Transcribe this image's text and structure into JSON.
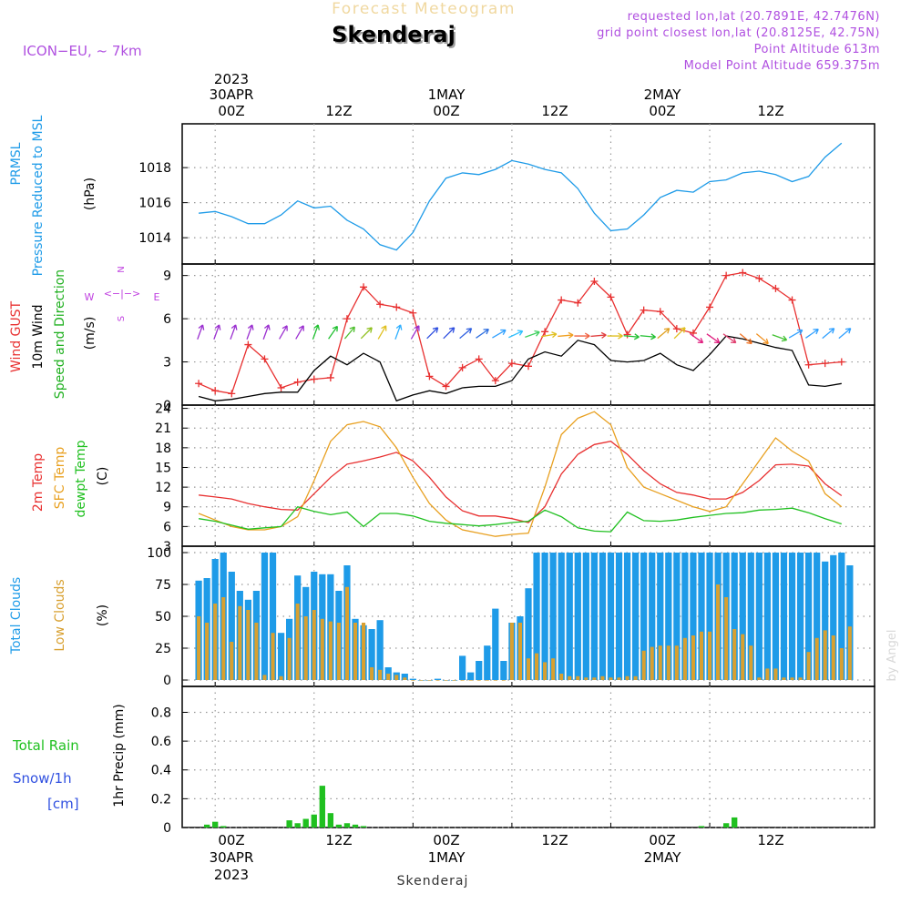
{
  "header": {
    "app_title": "Forecast Meteogram",
    "location": "Skenderaj",
    "model": "ICON−EU,  ~ 7km",
    "requested": "requested lon,lat (20.7891E, 42.7476N)",
    "gridpoint": "grid point closest lon,lat (20.8125E, 42.75N)",
    "point_alt": "Point Altitude 613m",
    "model_alt": "Model Point Altitude 659.375m",
    "footer_location": "Skenderaj",
    "watermark": "by Angel"
  },
  "time_axis": {
    "top": [
      {
        "l1": "2023",
        "l2": "30APR",
        "l3": "00Z"
      },
      {
        "l1": "",
        "l2": "",
        "l3": "12Z"
      },
      {
        "l1": "",
        "l2": "1MAY",
        "l3": "00Z"
      },
      {
        "l1": "",
        "l2": "",
        "l3": "12Z"
      },
      {
        "l1": "",
        "l2": "2MAY",
        "l3": "00Z"
      },
      {
        "l1": "",
        "l2": "",
        "l3": "12Z"
      }
    ],
    "bottom": [
      {
        "l1": "00Z",
        "l2": "30APR",
        "l3": "2023"
      },
      {
        "l1": "12Z",
        "l2": "",
        "l3": ""
      },
      {
        "l1": "00Z",
        "l2": "1MAY",
        "l3": ""
      },
      {
        "l1": "12Z",
        "l2": "",
        "l3": ""
      },
      {
        "l1": "00Z",
        "l2": "2MAY",
        "l3": ""
      },
      {
        "l1": "12Z",
        "l2": "",
        "l3": ""
      }
    ]
  },
  "chart_data": [
    {
      "type": "line",
      "id": "pressure",
      "ylabel_lines": [
        "PRMSL",
        "Pressure Reduced to MSL"
      ],
      "unit": "(hPa)",
      "ylim": [
        1012.5,
        1020.5
      ],
      "yticks": [
        1014,
        1016,
        1018
      ],
      "x_hours": [
        -2,
        0,
        2,
        4,
        6,
        8,
        10,
        12,
        14,
        16,
        18,
        20,
        22,
        24,
        26,
        28,
        30,
        32,
        34,
        36,
        38,
        40,
        42,
        44,
        46,
        48,
        50,
        52,
        54,
        56,
        58,
        60,
        62,
        64,
        66,
        68,
        70,
        72,
        74,
        76
      ],
      "series": [
        {
          "color": "#1e9be8",
          "values": [
            1015.4,
            1015.5,
            1015.2,
            1014.8,
            1014.8,
            1015.3,
            1016.1,
            1015.7,
            1015.8,
            1015.0,
            1014.5,
            1013.6,
            1013.3,
            1014.3,
            1016.1,
            1017.4,
            1017.7,
            1017.6,
            1017.9,
            1018.4,
            1018.2,
            1017.9,
            1017.7,
            1016.8,
            1015.4,
            1014.4,
            1014.5,
            1015.3,
            1016.3,
            1016.7,
            1016.6,
            1017.2,
            1017.3,
            1017.7,
            1017.8,
            1017.6,
            1017.2,
            1017.5,
            1018.6,
            1019.4
          ]
        }
      ]
    },
    {
      "type": "line",
      "id": "wind",
      "ylabel_lines": [
        "Wind GUST",
        "10m Wind",
        "Speed and Direction"
      ],
      "ylabel_colors": [
        "#e83030",
        "#000000",
        "#20b020"
      ],
      "unit": "(m/s)",
      "compass": {
        "n": "N",
        "w": "W",
        "e": "E",
        "s": "S"
      },
      "ylim": [
        0,
        9.8
      ],
      "yticks": [
        0,
        3,
        6,
        9
      ],
      "x_hours": [
        -2,
        0,
        2,
        4,
        6,
        8,
        10,
        12,
        14,
        16,
        18,
        20,
        22,
        24,
        26,
        28,
        30,
        32,
        34,
        36,
        38,
        40,
        42,
        44,
        46,
        48,
        50,
        52,
        54,
        56,
        58,
        60,
        62,
        64,
        66,
        68,
        70,
        72,
        74,
        76
      ],
      "series": [
        {
          "name": "Wind GUST",
          "color": "#e83030",
          "values": [
            1.5,
            1.0,
            0.8,
            4.2,
            3.2,
            1.2,
            1.6,
            1.8,
            1.9,
            6.0,
            8.2,
            7.0,
            6.8,
            6.4,
            2.0,
            1.3,
            2.6,
            3.2,
            1.7,
            2.9,
            2.7,
            5.1,
            7.3,
            7.1,
            8.6,
            7.5,
            4.9,
            6.6,
            6.5,
            5.3,
            5.0,
            6.8,
            9.0,
            9.2,
            8.8,
            8.1,
            7.3,
            2.8,
            2.9,
            3.0
          ]
        },
        {
          "name": "10m Wind",
          "color": "#000000",
          "values": [
            0.6,
            0.3,
            0.4,
            0.6,
            0.8,
            0.9,
            0.9,
            2.4,
            3.4,
            2.8,
            3.6,
            3.0,
            0.3,
            0.7,
            1.0,
            0.8,
            1.2,
            1.3,
            1.3,
            1.7,
            3.2,
            3.7,
            3.4,
            4.5,
            4.2,
            3.1,
            3.0,
            3.1,
            3.6,
            2.8,
            2.4,
            3.5,
            4.8,
            4.6,
            4.3,
            4.0,
            3.8,
            1.4,
            1.3,
            1.5
          ]
        }
      ],
      "barbs": [
        {
          "x": -2,
          "c": "#9b30d0",
          "a": 200
        },
        {
          "x": 0,
          "c": "#9b30d0",
          "a": 200
        },
        {
          "x": 2,
          "c": "#9b30d0",
          "a": 200
        },
        {
          "x": 4,
          "c": "#9b30d0",
          "a": 200
        },
        {
          "x": 6,
          "c": "#9b30d0",
          "a": 200
        },
        {
          "x": 8,
          "c": "#9b30d0",
          "a": 210
        },
        {
          "x": 10,
          "c": "#9b30d0",
          "a": 210
        },
        {
          "x": 12,
          "c": "#20c030",
          "a": 200
        },
        {
          "x": 14,
          "c": "#20c030",
          "a": 215
        },
        {
          "x": 16,
          "c": "#50c030",
          "a": 220
        },
        {
          "x": 18,
          "c": "#90c020",
          "a": 225
        },
        {
          "x": 20,
          "c": "#e0c020",
          "a": 210
        },
        {
          "x": 22,
          "c": "#30b0ff",
          "a": 200
        },
        {
          "x": 24,
          "c": "#9b30d0",
          "a": 210
        },
        {
          "x": 26,
          "c": "#3050e0",
          "a": 225
        },
        {
          "x": 28,
          "c": "#3050e0",
          "a": 225
        },
        {
          "x": 30,
          "c": "#3060e0",
          "a": 230
        },
        {
          "x": 32,
          "c": "#3070e0",
          "a": 235
        },
        {
          "x": 34,
          "c": "#30a0ff",
          "a": 240
        },
        {
          "x": 36,
          "c": "#30c0ff",
          "a": 245
        },
        {
          "x": 38,
          "c": "#40d060",
          "a": 250
        },
        {
          "x": 40,
          "c": "#e0c020",
          "a": 260
        },
        {
          "x": 42,
          "c": "#f0a020",
          "a": 265
        },
        {
          "x": 44,
          "c": "#f06040",
          "a": 270
        },
        {
          "x": 46,
          "c": "#e04040",
          "a": 265
        },
        {
          "x": 48,
          "c": "#e0c020",
          "a": 270
        },
        {
          "x": 50,
          "c": "#20c030",
          "a": 275
        },
        {
          "x": 52,
          "c": "#20c030",
          "a": 275
        },
        {
          "x": 54,
          "c": "#e0a020",
          "a": 230
        },
        {
          "x": 56,
          "c": "#e0c020",
          "a": 225
        },
        {
          "x": 58,
          "c": "#e02080",
          "a": 305
        },
        {
          "x": 60,
          "c": "#e02080",
          "a": 305
        },
        {
          "x": 62,
          "c": "#e04070",
          "a": 305
        },
        {
          "x": 64,
          "c": "#f07020",
          "a": 310
        },
        {
          "x": 66,
          "c": "#f09020",
          "a": 310
        },
        {
          "x": 68,
          "c": "#40c030",
          "a": 290
        },
        {
          "x": 70,
          "c": "#30a0ff",
          "a": 240
        },
        {
          "x": 72,
          "c": "#30a0ff",
          "a": 235
        },
        {
          "x": 74,
          "c": "#30a0ff",
          "a": 230
        },
        {
          "x": 76,
          "c": "#30a0ff",
          "a": 230
        }
      ]
    },
    {
      "type": "line",
      "id": "temperature",
      "ylabel_lines": [
        "2m Temp",
        "SFC Temp",
        "dewpt Temp"
      ],
      "ylabel_colors": [
        "#e83030",
        "#e8a020",
        "#20c020"
      ],
      "unit": "(C)",
      "ylim": [
        3,
        24.5
      ],
      "yticks": [
        3,
        6,
        9,
        12,
        15,
        18,
        21,
        24
      ],
      "x_hours": [
        -2,
        0,
        2,
        4,
        6,
        8,
        10,
        12,
        14,
        16,
        18,
        20,
        22,
        24,
        26,
        28,
        30,
        32,
        34,
        36,
        38,
        40,
        42,
        44,
        46,
        48,
        50,
        52,
        54,
        56,
        58,
        60,
        62,
        64,
        66,
        68,
        70,
        72,
        74,
        76
      ],
      "series": [
        {
          "name": "2m Temp",
          "color": "#e83030",
          "values": [
            10.8,
            10.5,
            10.2,
            9.5,
            9.0,
            8.6,
            8.5,
            11.0,
            13.5,
            15.5,
            16.0,
            16.6,
            17.3,
            16.0,
            13.5,
            10.5,
            8.4,
            7.6,
            7.6,
            7.2,
            6.6,
            9.0,
            14.0,
            17.0,
            18.5,
            19.0,
            17.0,
            14.5,
            12.5,
            11.2,
            10.8,
            10.2,
            10.2,
            11.2,
            13.0,
            15.4,
            15.5,
            15.2,
            12.5,
            10.7
          ]
        },
        {
          "name": "SFC Temp",
          "color": "#e8a020",
          "values": [
            8.0,
            7.0,
            6.0,
            5.5,
            5.5,
            6.0,
            7.5,
            13.0,
            19.0,
            21.5,
            22.0,
            21.2,
            18.0,
            13.5,
            9.5,
            7.0,
            5.5,
            5.0,
            4.5,
            4.8,
            5.0,
            12.0,
            20.0,
            22.5,
            23.5,
            21.5,
            15.0,
            12.0,
            11.0,
            10.0,
            9.0,
            8.3,
            9.0,
            12.5,
            16.0,
            19.5,
            17.5,
            16.0,
            11.0,
            9.0
          ]
        },
        {
          "name": "dewpt Temp",
          "color": "#20c020",
          "values": [
            7.2,
            6.8,
            6.2,
            5.6,
            5.8,
            6.0,
            9.0,
            8.3,
            7.8,
            8.2,
            6.0,
            8.0,
            8.0,
            7.6,
            6.8,
            6.5,
            6.3,
            6.1,
            6.3,
            6.6,
            6.8,
            8.5,
            7.5,
            5.8,
            5.3,
            5.2,
            8.2,
            6.9,
            6.8,
            7.0,
            7.4,
            7.7,
            8.0,
            8.1,
            8.5,
            8.6,
            8.8,
            8.1,
            7.2,
            6.4
          ]
        }
      ]
    },
    {
      "type": "bar",
      "id": "clouds",
      "ylabel_lines": [
        "Total Clouds",
        "Low Clouds"
      ],
      "ylabel_colors": [
        "#1e9be8",
        "#d8a030"
      ],
      "unit": "(%)",
      "ylim": [
        -5,
        105
      ],
      "yticks": [
        0,
        25,
        50,
        75,
        100
      ],
      "x_hours": [
        -2,
        -1,
        0,
        1,
        2,
        3,
        4,
        5,
        6,
        7,
        8,
        9,
        10,
        11,
        12,
        13,
        14,
        15,
        16,
        17,
        18,
        19,
        20,
        21,
        22,
        23,
        24,
        25,
        26,
        27,
        28,
        29,
        30,
        31,
        32,
        33,
        34,
        35,
        36,
        37,
        38,
        39,
        40,
        41,
        42,
        43,
        44,
        45,
        46,
        47,
        48,
        49,
        50,
        51,
        52,
        53,
        54,
        55,
        56,
        57,
        58,
        59,
        60,
        61,
        62,
        63,
        64,
        65,
        66,
        67,
        68,
        69,
        70,
        71,
        72,
        73,
        74,
        75,
        76,
        77
      ],
      "series": [
        {
          "name": "Total Clouds",
          "color": "#1e9be8",
          "values": [
            78,
            80,
            95,
            100,
            85,
            70,
            63,
            70,
            100,
            100,
            37,
            48,
            82,
            73,
            85,
            83,
            83,
            70,
            90,
            48,
            43,
            40,
            47,
            10,
            6,
            5,
            1,
            0,
            0,
            1,
            0,
            0,
            19,
            6,
            15,
            27,
            56,
            15,
            45,
            50,
            72,
            100,
            100,
            100,
            100,
            100,
            100,
            100,
            100,
            100,
            100,
            100,
            100,
            100,
            100,
            100,
            100,
            100,
            100,
            100,
            100,
            100,
            100,
            100,
            100,
            100,
            100,
            100,
            100,
            100,
            100,
            100,
            100,
            100,
            100,
            100,
            93,
            98,
            100,
            90
          ]
        },
        {
          "name": "Low Clouds",
          "color": "#d8a030",
          "values": [
            50,
            45,
            60,
            65,
            30,
            58,
            55,
            45,
            4,
            37,
            3,
            33,
            60,
            50,
            55,
            48,
            46,
            45,
            73,
            45,
            45,
            10,
            8,
            5,
            4,
            2,
            0,
            0,
            0,
            0,
            0,
            0,
            0,
            0,
            0,
            0,
            0,
            0,
            45,
            45,
            17,
            21,
            14,
            17,
            5,
            3,
            3,
            2,
            2,
            3,
            2,
            2,
            3,
            3,
            23,
            26,
            27,
            27,
            27,
            33,
            35,
            38,
            38,
            75,
            65,
            40,
            36,
            27,
            2,
            9,
            9,
            2,
            2,
            2,
            22,
            33,
            39,
            35,
            25,
            42
          ]
        }
      ]
    },
    {
      "type": "bar",
      "id": "precip",
      "legend_lines": [
        "Total  Rain",
        "Snow/1h",
        "[cm]"
      ],
      "legend_colors": [
        "#20c020",
        "#3050e0",
        "#3050e0"
      ],
      "ylabel": "1hr Precip (mm)",
      "ylim": [
        0,
        0.98
      ],
      "yticks": [
        0,
        0.2,
        0.4,
        0.6,
        0.8
      ],
      "ytick_labels": [
        "0",
        "0.2",
        "0.4",
        "0.6",
        "0.8"
      ],
      "x_hours": [
        -1,
        0,
        1,
        9,
        10,
        11,
        12,
        13,
        14,
        15,
        16,
        17,
        18,
        59,
        62,
        63
      ],
      "series": [
        {
          "name": "Total Rain",
          "color": "#20c020",
          "values": [
            0.02,
            0.04,
            0.01,
            0.05,
            0.03,
            0.06,
            0.09,
            0.29,
            0.1,
            0.02,
            0.03,
            0.02,
            0.01,
            0.01,
            0.03,
            0.07
          ]
        }
      ]
    }
  ]
}
